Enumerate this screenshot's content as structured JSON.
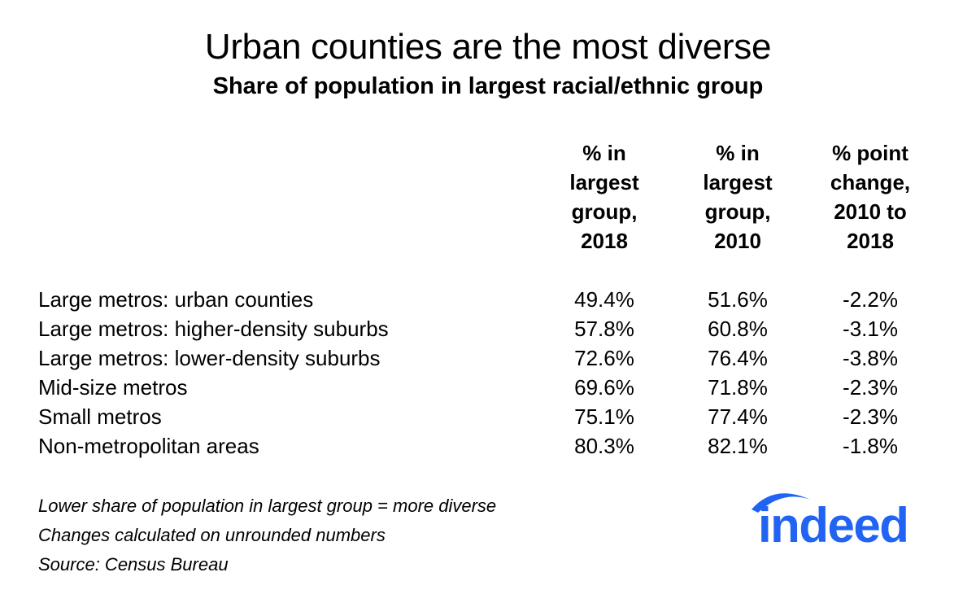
{
  "chart_data": {
    "type": "table",
    "title": "Urban counties are the most diverse",
    "subtitle": "Share of population in largest racial/ethnic group",
    "columns": [
      {
        "key": "pct_2018",
        "lines": [
          "% in",
          "largest",
          "group,",
          "2018"
        ]
      },
      {
        "key": "pct_2010",
        "lines": [
          "% in",
          "largest",
          "group,",
          "2010"
        ]
      },
      {
        "key": "change",
        "lines": [
          "% point",
          "change,",
          "2010 to",
          "2018"
        ]
      }
    ],
    "rows": [
      {
        "label": "Large metros: urban counties",
        "pct_2018": "49.4%",
        "pct_2010": "51.6%",
        "change": "-2.2%"
      },
      {
        "label": "Large metros: higher-density suburbs",
        "pct_2018": "57.8%",
        "pct_2010": "60.8%",
        "change": "-3.1%"
      },
      {
        "label": "Large metros: lower-density suburbs",
        "pct_2018": "72.6%",
        "pct_2010": "76.4%",
        "change": "-3.8%"
      },
      {
        "label": "Mid-size metros",
        "pct_2018": "69.6%",
        "pct_2010": "71.8%",
        "change": "-2.3%"
      },
      {
        "label": "Small metros",
        "pct_2018": "75.1%",
        "pct_2010": "77.4%",
        "change": "-2.3%"
      },
      {
        "label": "Non-metropolitan areas",
        "pct_2018": "80.3%",
        "pct_2010": "82.1%",
        "change": "-1.8%"
      }
    ],
    "values": {
      "pct_2018": [
        49.4,
        57.8,
        72.6,
        69.6,
        75.1,
        80.3
      ],
      "pct_2010": [
        51.6,
        60.8,
        76.4,
        71.8,
        77.4,
        82.1
      ],
      "change": [
        -2.2,
        -3.1,
        -3.8,
        -2.3,
        -2.3,
        -1.8
      ]
    }
  },
  "notes": [
    "Lower share of population in largest group = more diverse",
    "Changes calculated on unrounded numbers",
    "Source: Census Bureau"
  ],
  "logo": {
    "text": "indeed",
    "color": "#2164f3"
  }
}
